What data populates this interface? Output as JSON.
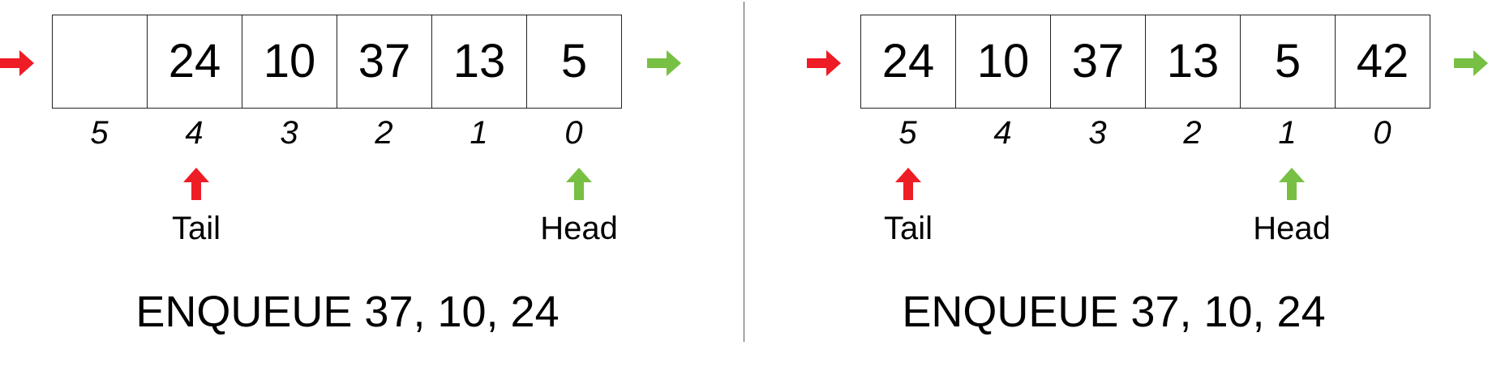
{
  "colors": {
    "tail": "#ee1c25",
    "head": "#77c043"
  },
  "icons": {
    "enqueue_side": "arrow-right-icon",
    "dequeue_side": "arrow-right-icon",
    "pointer": "arrow-up-icon"
  },
  "panels": [
    {
      "cells": [
        "",
        "24",
        "10",
        "37",
        "13",
        "5"
      ],
      "indices": [
        "5",
        "4",
        "3",
        "2",
        "1",
        "0"
      ],
      "tail_label": "Tail",
      "head_label": "Head",
      "caption": "ENQUEUE 37, 10, 24"
    },
    {
      "cells": [
        "24",
        "10",
        "37",
        "13",
        "5",
        "42"
      ],
      "indices": [
        "5",
        "4",
        "3",
        "2",
        "1",
        "0"
      ],
      "tail_label": "Tail",
      "head_label": "Head",
      "caption": "ENQUEUE 37, 10, 24"
    }
  ]
}
